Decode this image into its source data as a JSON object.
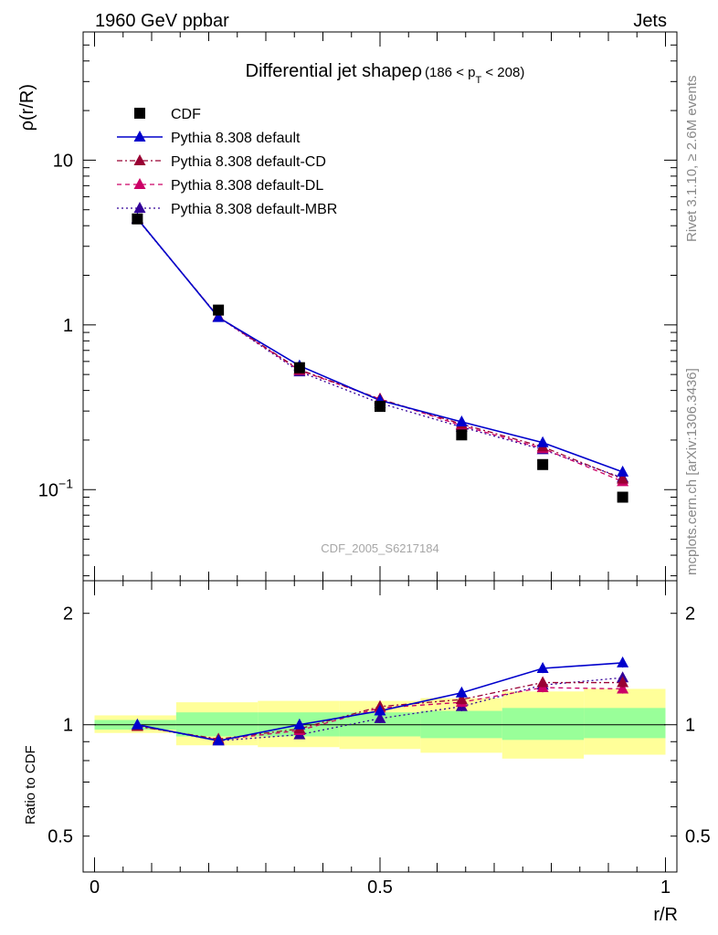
{
  "header": {
    "left": "1960 GeV ppbar",
    "right": "Jets"
  },
  "side_text": {
    "upper": "Rivet 3.1.10, ≥ 2.6M events",
    "lower": "mcplots.cern.ch [arXiv:1306.3436]"
  },
  "watermark": "CDF_2005_S6217184",
  "colors": {
    "cdf": "#000000",
    "default": "#0000cc",
    "cd": "#990033",
    "dl": "#cc0066",
    "mbr": "#330099",
    "band_inner": "#99ff99",
    "band_outer": "#ffff99"
  },
  "chart_data": [
    {
      "type": "line",
      "title_main": "Differential jet shapeρ",
      "title_cut": {
        "prefix": "(186 < p",
        "sub": "T",
        "suffix": " < 208)"
      },
      "ylabel": "ρ(r/R)",
      "yscale": "log",
      "ylim": [
        0.028,
        60
      ],
      "yticks": [
        {
          "v": 10,
          "label": "10"
        },
        {
          "v": 1,
          "label": "1"
        },
        {
          "v": 0.1,
          "label": "10",
          "sup": "−1"
        }
      ],
      "xlim": [
        -0.02,
        1.02
      ],
      "x": [
        0.075,
        0.217,
        0.359,
        0.5,
        0.643,
        0.785,
        0.925
      ],
      "legend": [
        {
          "key": "cdf",
          "label": "CDF"
        },
        {
          "key": "default",
          "label": "Pythia 8.308 default"
        },
        {
          "key": "cd",
          "label": "Pythia 8.308 default-CD"
        },
        {
          "key": "dl",
          "label": "Pythia 8.308 default-DL"
        },
        {
          "key": "mbr",
          "label": "Pythia 8.308 default-MBR"
        }
      ],
      "series": [
        {
          "key": "cdf",
          "name": "CDF",
          "values": [
            4.4,
            1.23,
            0.55,
            0.32,
            0.215,
            0.142,
            0.09
          ]
        },
        {
          "key": "default",
          "name": "Pythia 8.308 default",
          "values": [
            4.42,
            1.11,
            0.565,
            0.348,
            0.258,
            0.193,
            0.128
          ]
        },
        {
          "key": "cd",
          "name": "Pythia 8.308 default-CD",
          "values": [
            4.4,
            1.12,
            0.535,
            0.355,
            0.25,
            0.182,
            0.116
          ]
        },
        {
          "key": "dl",
          "name": "Pythia 8.308 default-DL",
          "values": [
            4.41,
            1.115,
            0.53,
            0.355,
            0.245,
            0.178,
            0.112
          ]
        },
        {
          "key": "mbr",
          "name": "Pythia 8.308 default-MBR",
          "values": [
            4.38,
            1.115,
            0.52,
            0.335,
            0.24,
            0.175,
            0.118
          ]
        }
      ]
    },
    {
      "type": "line",
      "ylabel": "Ratio to CDF",
      "xlabel": "r/R",
      "yscale": "log",
      "ylim": [
        0.4,
        2.45
      ],
      "yticks": [
        {
          "v": 2,
          "label": "2"
        },
        {
          "v": 1,
          "label": "1"
        },
        {
          "v": 0.5,
          "label": "0.5"
        }
      ],
      "xticks": [
        {
          "v": 0,
          "label": "0"
        },
        {
          "v": 0.5,
          "label": "0.5"
        },
        {
          "v": 1,
          "label": "1"
        }
      ],
      "bands": {
        "edges": [
          0.0,
          0.143,
          0.286,
          0.429,
          0.571,
          0.714,
          0.857,
          1.0
        ],
        "inner": [
          [
            0.97,
            1.03
          ],
          [
            0.93,
            1.08
          ],
          [
            0.93,
            1.08
          ],
          [
            0.93,
            1.08
          ],
          [
            0.92,
            1.09
          ],
          [
            0.91,
            1.11
          ],
          [
            0.92,
            1.11
          ]
        ],
        "outer": [
          [
            0.95,
            1.06
          ],
          [
            0.88,
            1.15
          ],
          [
            0.87,
            1.16
          ],
          [
            0.86,
            1.16
          ],
          [
            0.84,
            1.18
          ],
          [
            0.81,
            1.23
          ],
          [
            0.83,
            1.25
          ]
        ]
      },
      "x": [
        0.075,
        0.217,
        0.359,
        0.5,
        0.643,
        0.785,
        0.925
      ],
      "series": [
        {
          "key": "default",
          "name": "Pythia 8.308 default",
          "values": [
            1.0,
            0.905,
            1.0,
            1.09,
            1.22,
            1.42,
            1.47
          ]
        },
        {
          "key": "cd",
          "name": "Pythia 8.308 default-CD",
          "values": [
            0.99,
            0.915,
            0.975,
            1.12,
            1.17,
            1.3,
            1.3
          ]
        },
        {
          "key": "dl",
          "name": "Pythia 8.308 default-DL",
          "values": [
            0.995,
            0.91,
            0.965,
            1.11,
            1.15,
            1.26,
            1.25
          ]
        },
        {
          "key": "mbr",
          "name": "Pythia 8.308 default-MBR",
          "values": [
            0.995,
            0.905,
            0.94,
            1.04,
            1.12,
            1.28,
            1.34
          ]
        }
      ]
    }
  ]
}
